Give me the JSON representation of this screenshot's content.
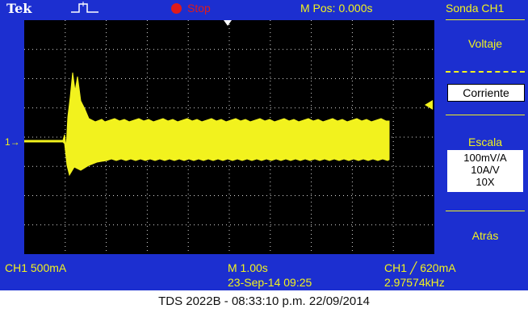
{
  "topbar": {
    "brand": "Tek",
    "run_state": "Stop",
    "m_pos": "M Pos: 0.000s",
    "probe_menu": "Sonda CH1"
  },
  "side_menu": {
    "voltage": "Voltaje",
    "current": "Corriente",
    "scale_title": "Escala",
    "scale_options": [
      "100mV/A",
      "10A/V",
      "10X"
    ],
    "back": "Atrás"
  },
  "bottombar": {
    "ch1_scale": "CH1  500mA",
    "time_scale": "M 1.00s",
    "trigger": "CH1  ╱  620mA",
    "timestamp": "23-Sep-14 09:25",
    "frequency": "2.97574kHz"
  },
  "channel_marker": "1→",
  "footer": "TDS 2022B - 08:33:10 p.m.   22/09/2014",
  "colors": {
    "screen": "#1c2fd0",
    "trace": "#f2f21e",
    "graticule": "#d8d8d8",
    "plot_bg": "#000000",
    "stop": "#e01a1a"
  }
}
